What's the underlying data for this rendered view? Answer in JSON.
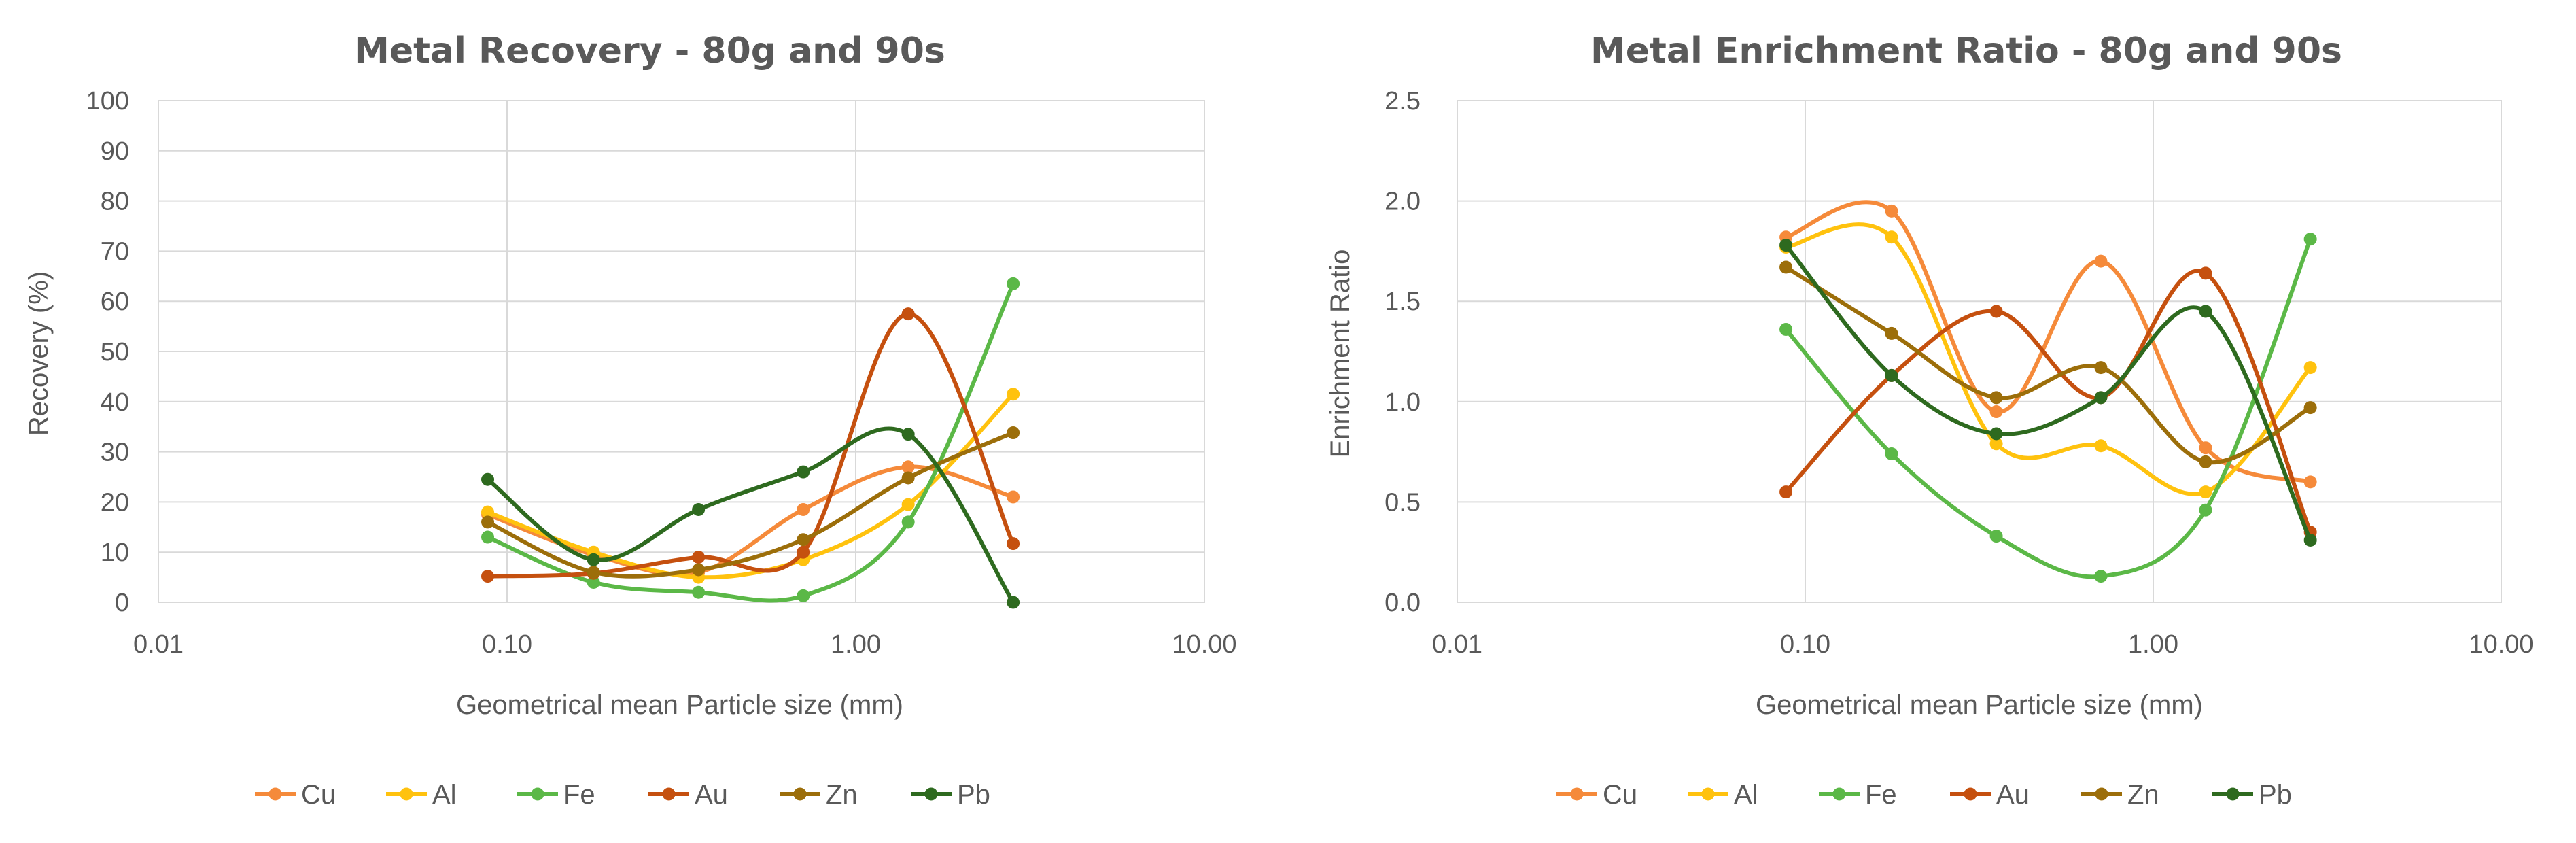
{
  "series_colors": {
    "Cu": "#F58A3A",
    "Al": "#FFC20E",
    "Fe": "#5BB847",
    "Au": "#C5500F",
    "Zn": "#9C6E0A",
    "Pb": "#2E6A1F"
  },
  "chart_data": [
    {
      "type": "line",
      "title": "Metal Recovery - 80g and 90s",
      "xlabel": "Geometrical mean Particle size (mm)",
      "ylabel": "Recovery (%)",
      "xscale": "log",
      "xlim": [
        0.01,
        10
      ],
      "ylim": [
        0,
        100
      ],
      "xticks": [
        "0.01",
        "0.10",
        "1.00",
        "10.00"
      ],
      "yticks": [
        "0",
        "10",
        "20",
        "30",
        "40",
        "50",
        "60",
        "70",
        "80",
        "90",
        "100"
      ],
      "x": [
        0.088,
        0.177,
        0.354,
        0.707,
        1.414,
        2.828
      ],
      "series": [
        {
          "name": "Cu",
          "values": [
            17.5,
            9.5,
            6.0,
            18.5,
            27.0,
            21.0
          ]
        },
        {
          "name": "Al",
          "values": [
            18.0,
            10.0,
            5.0,
            8.5,
            19.5,
            41.5
          ]
        },
        {
          "name": "Fe",
          "values": [
            13.0,
            4.0,
            2.0,
            1.3,
            16.0,
            63.5
          ]
        },
        {
          "name": "Au",
          "values": [
            5.2,
            5.8,
            9.0,
            10.0,
            57.5,
            11.7
          ]
        },
        {
          "name": "Zn",
          "values": [
            16.0,
            6.0,
            6.5,
            12.5,
            24.8,
            33.8
          ]
        },
        {
          "name": "Pb",
          "values": [
            24.5,
            8.5,
            18.5,
            26.0,
            33.5,
            0.0
          ]
        }
      ],
      "legend": [
        "Cu",
        "Al",
        "Fe",
        "Au",
        "Zn",
        "Pb"
      ],
      "legend_position": "bottom",
      "grid": true
    },
    {
      "type": "line",
      "title": "Metal Enrichment Ratio - 80g and 90s",
      "xlabel": "Geometrical mean Particle size (mm)",
      "ylabel": "Enrichment Ratio",
      "xscale": "log",
      "xlim": [
        0.01,
        10
      ],
      "ylim": [
        0,
        2.5
      ],
      "xticks": [
        "0.01",
        "0.10",
        "1.00",
        "10.00"
      ],
      "yticks": [
        "0.0",
        "0.5",
        "1.0",
        "1.5",
        "2.0",
        "2.5"
      ],
      "x": [
        0.088,
        0.177,
        0.354,
        0.707,
        1.414,
        2.828
      ],
      "series": [
        {
          "name": "Cu",
          "values": [
            1.82,
            1.95,
            0.95,
            1.7,
            0.77,
            0.6
          ]
        },
        {
          "name": "Al",
          "values": [
            1.77,
            1.82,
            0.79,
            0.78,
            0.55,
            1.17
          ]
        },
        {
          "name": "Fe",
          "values": [
            1.36,
            0.74,
            0.33,
            0.13,
            0.46,
            1.81
          ]
        },
        {
          "name": "Au",
          "values": [
            0.55,
            1.13,
            1.45,
            1.02,
            1.64,
            0.35
          ]
        },
        {
          "name": "Zn",
          "values": [
            1.67,
            1.34,
            1.02,
            1.17,
            0.7,
            0.97
          ]
        },
        {
          "name": "Pb",
          "values": [
            1.78,
            1.13,
            0.84,
            1.02,
            1.45,
            0.31
          ]
        }
      ],
      "legend": [
        "Cu",
        "Al",
        "Fe",
        "Au",
        "Zn",
        "Pb"
      ],
      "legend_position": "bottom",
      "grid": true
    }
  ]
}
